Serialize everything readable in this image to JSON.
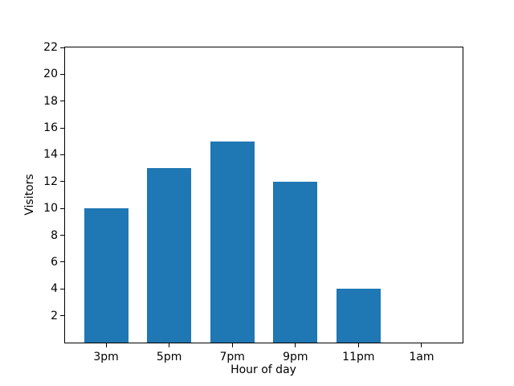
{
  "figure": {
    "background": "#ffffff"
  },
  "chart_data": {
    "type": "bar",
    "title": "",
    "xlabel": "Hour of day",
    "ylabel": "Visitors",
    "categories": [
      "3pm",
      "5pm",
      "7pm",
      "9pm",
      "11pm",
      "1am"
    ],
    "values": [
      10,
      13,
      15,
      12,
      4,
      0
    ],
    "ylim": [
      0,
      22
    ],
    "yticks": [
      2,
      4,
      6,
      8,
      10,
      12,
      14,
      16,
      18,
      20,
      22
    ],
    "bar_color": "#1f77b4",
    "axis_color": "#000000",
    "grid": false,
    "legend_position": "none"
  }
}
